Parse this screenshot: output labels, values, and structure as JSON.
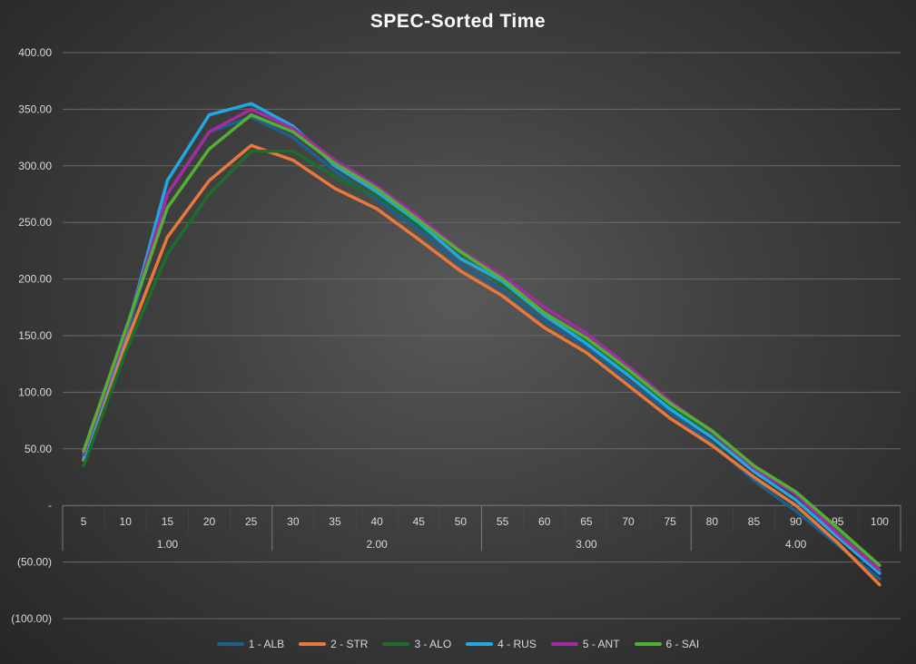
{
  "chart_data": {
    "type": "line",
    "title": "SPEC-Sorted Time",
    "x": [
      "5",
      "10",
      "15",
      "20",
      "25",
      "30",
      "35",
      "40",
      "45",
      "50",
      "55",
      "60",
      "65",
      "70",
      "75",
      "80",
      "85",
      "90",
      "95",
      "100"
    ],
    "group_labels": [
      "1.00",
      "2.00",
      "3.00",
      "4.00"
    ],
    "ylim": [
      -100,
      400
    ],
    "yticks": [
      400,
      350,
      300,
      250,
      200,
      150,
      100,
      50,
      0,
      -50,
      -100
    ],
    "ytick_labels": [
      "400.00",
      "350.00",
      "300.00",
      "250.00",
      "200.00",
      "150.00",
      "100.00",
      "50.00",
      "-",
      "(50.00)",
      "(100.00)"
    ],
    "grid": true,
    "legend_position": "bottom",
    "series": [
      {
        "name": "1 - ALB",
        "color": "#1f5f8b",
        "values": [
          40,
          145,
          275,
          330,
          343,
          325,
          295,
          270,
          243,
          213,
          190,
          163,
          140,
          110,
          82,
          55,
          22,
          -5,
          -35,
          -65
        ]
      },
      {
        "name": "2 - STR",
        "color": "#e8793a",
        "values": [
          40,
          142,
          237,
          287,
          318,
          305,
          280,
          262,
          235,
          207,
          185,
          157,
          135,
          106,
          77,
          53,
          25,
          0,
          -33,
          -70
        ]
      },
      {
        "name": "3 - ALO",
        "color": "#1c6e2a",
        "values": [
          35,
          135,
          222,
          275,
          313,
          313,
          290,
          273,
          247,
          220,
          195,
          168,
          145,
          117,
          87,
          63,
          33,
          10,
          -22,
          -57
        ]
      },
      {
        "name": "4 - RUS",
        "color": "#22a7e0",
        "values": [
          42,
          150,
          287,
          345,
          355,
          335,
          300,
          277,
          250,
          218,
          198,
          168,
          143,
          115,
          85,
          60,
          30,
          5,
          -28,
          -60
        ]
      },
      {
        "name": "5 - ANT",
        "color": "#a12da0",
        "values": [
          45,
          152,
          275,
          330,
          350,
          333,
          305,
          282,
          255,
          225,
          203,
          175,
          152,
          123,
          92,
          65,
          33,
          10,
          -25,
          -57
        ]
      },
      {
        "name": "6 - SAI",
        "color": "#52b035",
        "values": [
          48,
          155,
          263,
          315,
          345,
          330,
          302,
          280,
          252,
          224,
          200,
          170,
          148,
          120,
          90,
          66,
          35,
          12,
          -20,
          -53
        ]
      }
    ]
  }
}
